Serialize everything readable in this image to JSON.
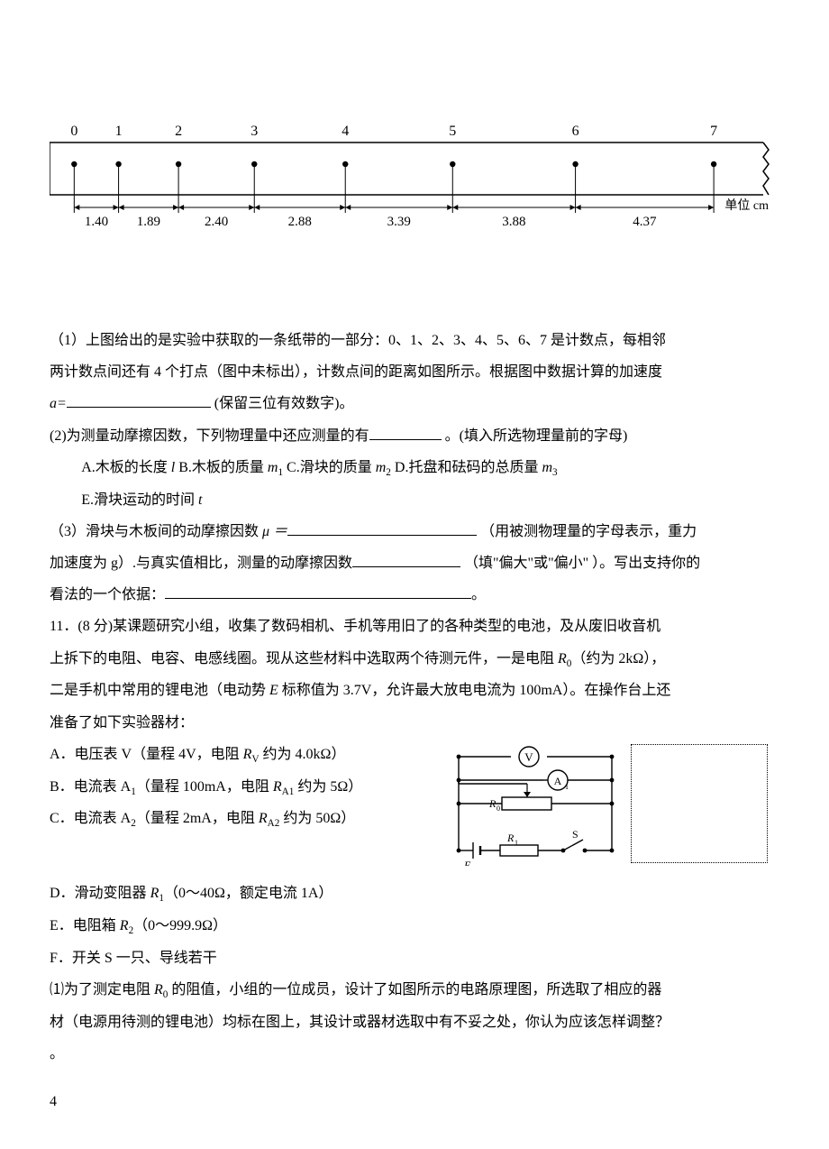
{
  "tape": {
    "tick_labels": [
      "0",
      "1",
      "2",
      "3",
      "4",
      "5",
      "6",
      "7"
    ],
    "tick_positions_mm": [
      3,
      15.0,
      31.2,
      51.7,
      76.3,
      105.3,
      138.5,
      175.9
    ],
    "interval_labels": [
      "1.40",
      "1.89",
      "2.40",
      "2.88",
      "3.39",
      "3.88",
      "4.37"
    ],
    "unit_label": "单位 cm",
    "width_mm": 190,
    "height_mm": 20,
    "stroke": "#000000",
    "fontsize_ticks": 16,
    "fontsize_intervals": 15
  },
  "q10": {
    "p1_a": "（1）上图给出的是实验中获取的一条纸带的一部分：0、1、2、3、4、5、6、7 是计数点，每相邻",
    "p1_b": "两计数点间还有 4 个打点（图中未标出），计数点间的距离如图所示。根据图中数据计算的加速度",
    "p1_c_prefix": "a=",
    "p1_c_suffix": " (保留三位有效数字)。",
    "p2_prefix": "(2)为测量动摩擦因数，下列物理量中还应测量的有",
    "p2_suffix": " 。(填入所选物理量前的字母)",
    "optA_1": "A.木板的长度 ",
    "optA_sym": "l",
    "gap1": "   ",
    "optB_1": "B.木板的质量 ",
    "optB_sym": "m",
    "optB_sub": "1",
    "gap2": "   ",
    "optC_1": "C.滑块的质量 ",
    "optC_sym": "m",
    "optC_sub": "2",
    "gap3": "   ",
    "optD_1": "D.托盘和砝码的总质量 ",
    "optD_sym": "m",
    "optD_sub": "3",
    "optE_1": "E.滑块运动的时间 ",
    "optE_sym": "t",
    "p3_prefix": "（3）滑块与木板间的动摩擦因数",
    "p3_mu": " μ ＝",
    "p3_mid": " （用被测物理量的字母表示，重力",
    "p3_line2a": "加速度为 g）.与真实值相比，测量的动摩擦因数",
    "p3_line2b": " （填\"偏大\"或\"偏小\" ）。写出支持你的",
    "p3_line3a": "看法的一个依据：",
    "p3_line3b": "。"
  },
  "q11": {
    "head_a": "11．(8 分)某课题研究小组，收集了数码相机、手机等用旧了的各种类型的电池，及从废旧收音机",
    "head_b1": "上拆下的电阻、电容、电感线圈。现从这些材料中选取两个待测元件，一是电阻 ",
    "head_b_R": "R",
    "head_b_R0": "0",
    "head_b2": "（约为 2kΩ），",
    "head_c1": "二是手机中常用的锂电池（电动势 ",
    "head_c_E": "E",
    "head_c2": " 标称值为 3.7V，允许最大放电电流为 100mA）。在操作台上还",
    "head_d": "准备了如下实验器材：",
    "A1": "A．电压表 V（量程 4V，电阻 ",
    "A_Rv": "R",
    "A_Rv_sub": "V",
    "A2": " 约为 4.0kΩ）",
    "B1": "B．电流表 A",
    "B_sub1": "1",
    "B2": "（量程 100mA，电阻 ",
    "B_RA": "R",
    "B_RA_sub": "A1",
    "B3": " 约为 5Ω）",
    "C1": "C．电流表 A",
    "C_sub1": "2",
    "C2": "（量程 2mA，电阻 ",
    "C_RA": "R",
    "C_RA_sub": "A2",
    "C3": " 约为 50Ω）",
    "D1": "D．滑动变阻器 ",
    "D_R": "R",
    "D_R_sub": "1",
    "D2": "（0～40Ω，额定电流 1A）",
    "E1": "E．电阻箱 ",
    "E_R": "R",
    "E_R_sub": "2",
    "E2": "（0～999.9Ω）",
    "F": "F．开关 S 一只、导线若干",
    "sub1_a": "⑴为了测定电阻 ",
    "sub1_R": "R",
    "sub1_R_sub": "0",
    "sub1_b": " 的阻值，小组的一位成员，设计了如图所示的电路原理图，所选取了相应的器",
    "sub1_c": "材（电源用待测的锂电池）均标在图上，其设计或器材选取中有不妥之处，你认为应该怎样调整？",
    "sub1_end": "。"
  },
  "circuit": {
    "V_label": "V",
    "A_label": "A",
    "A_sub": "1",
    "R0": "R",
    "R0_sub": "0",
    "E": "E",
    "R1": "R",
    "R1_sub": "1",
    "S": "S",
    "stroke": "#000000"
  },
  "page_number": "4"
}
